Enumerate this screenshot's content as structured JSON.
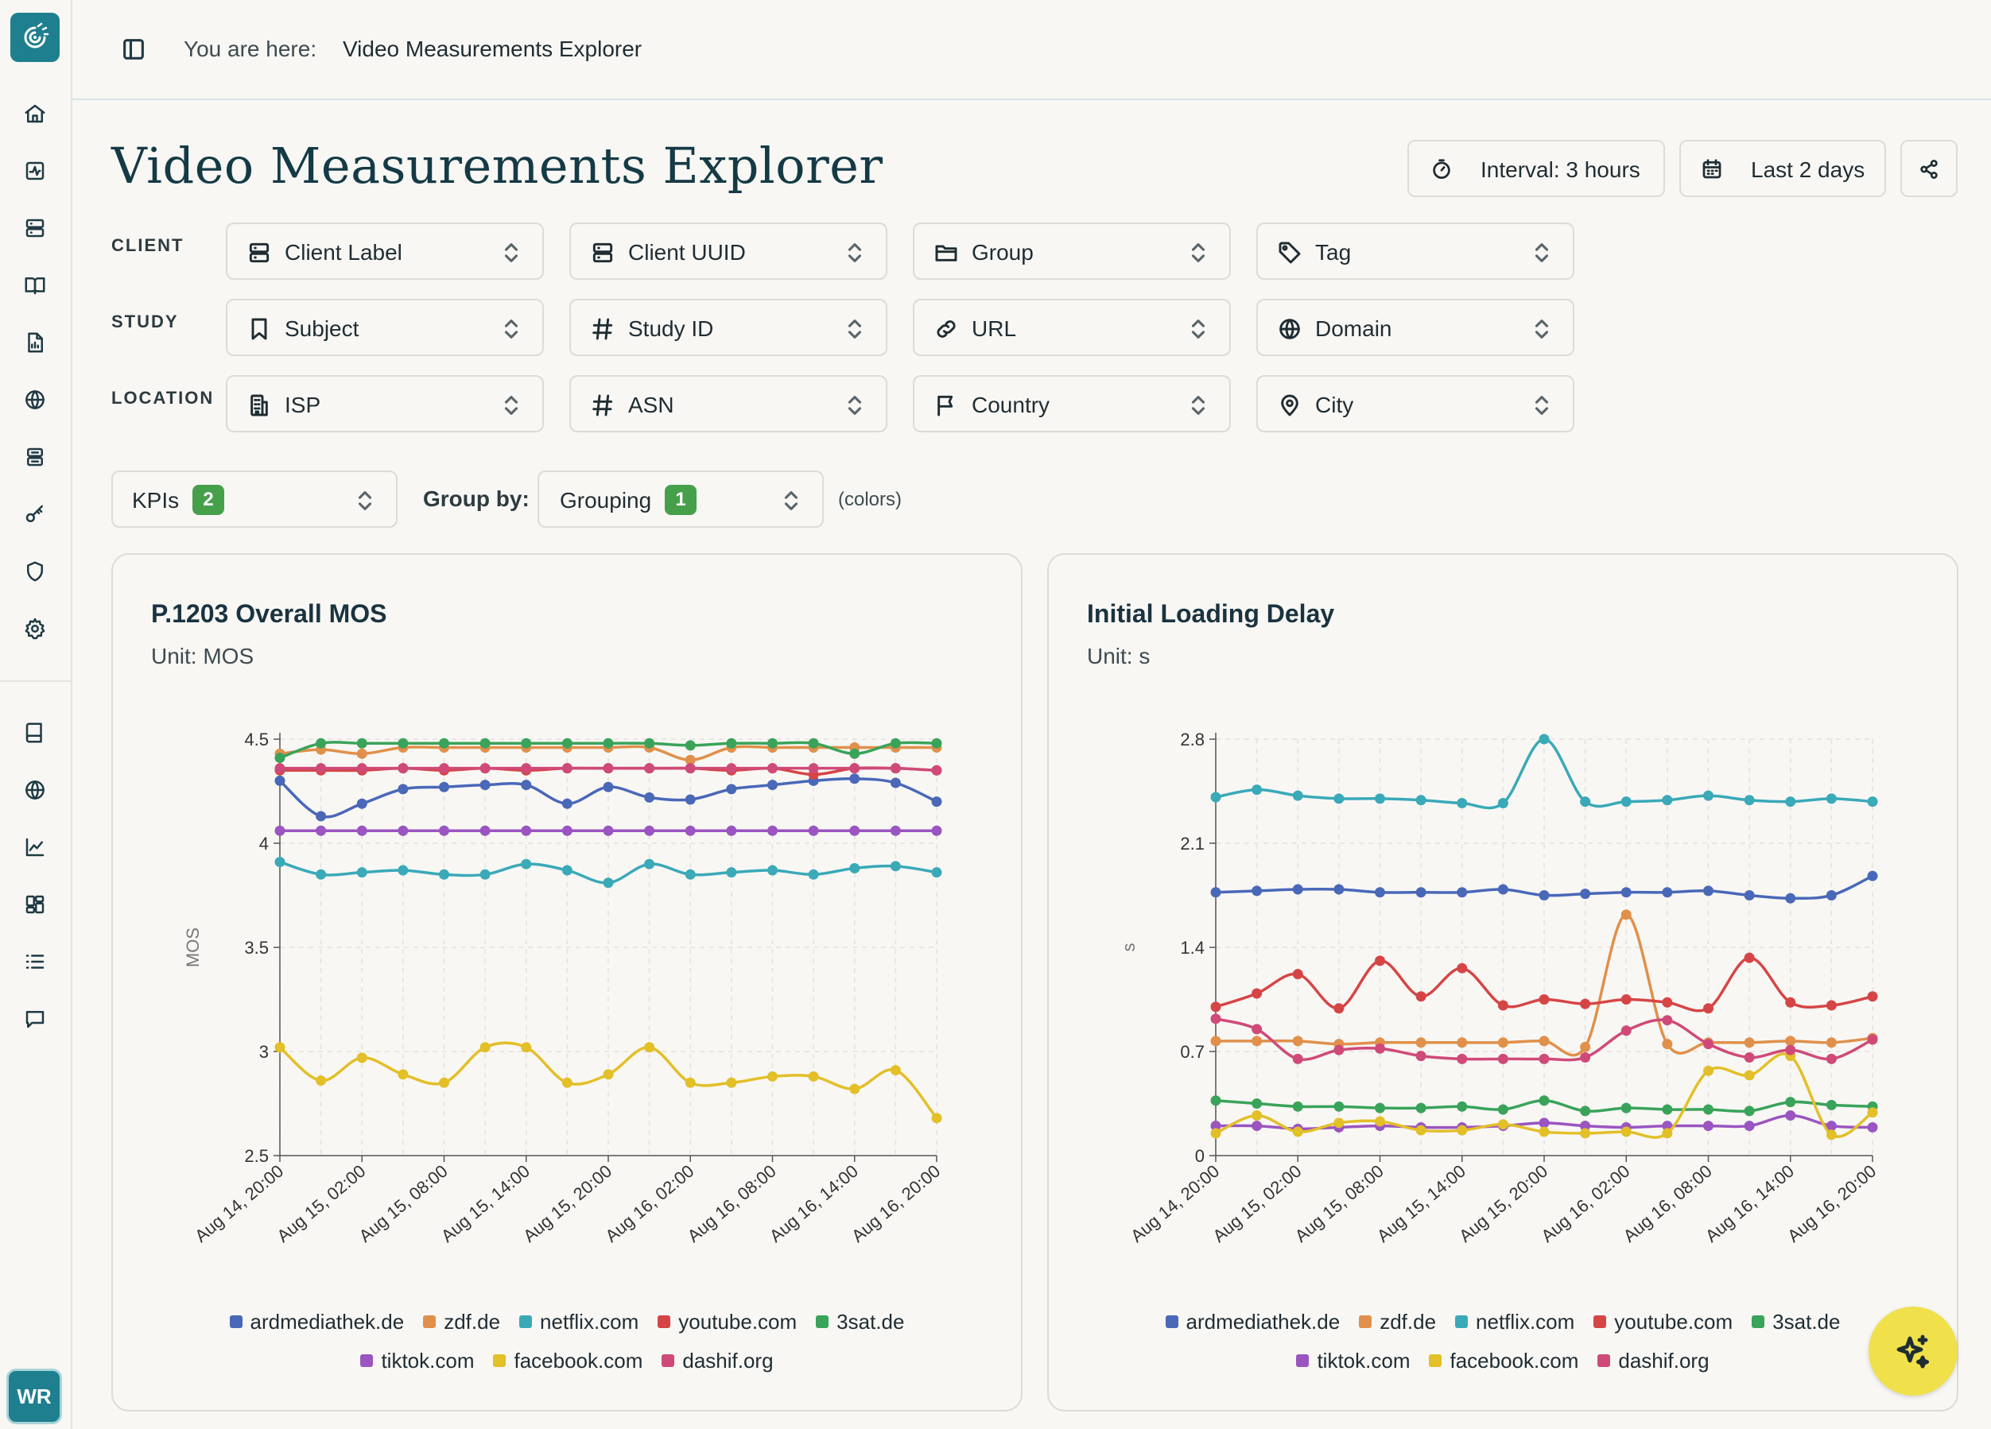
{
  "sidebar": {
    "avatar_initials": "WR",
    "icons": [
      "home-icon",
      "activity-icon",
      "server-icon",
      "book-open-icon",
      "report-icon",
      "globe-icon",
      "database-icon",
      "key-icon",
      "shield-icon",
      "gear-icon",
      "book-icon",
      "globe-icon",
      "chart-line-icon",
      "dashboard-icon",
      "list-icon",
      "message-icon"
    ]
  },
  "breadcrumb": {
    "prefix": "You are here:",
    "current": "Video Measurements Explorer"
  },
  "page_title": "Video Measurements Explorer",
  "actions": {
    "interval": "Interval: 3 hours",
    "range": "Last 2 days"
  },
  "filters": {
    "rows": [
      {
        "label": "CLIENT",
        "items": [
          {
            "label": "Client Label",
            "icon": "server-icon"
          },
          {
            "label": "Client UUID",
            "icon": "server-icon"
          },
          {
            "label": "Group",
            "icon": "folder-icon"
          },
          {
            "label": "Tag",
            "icon": "tag-icon"
          }
        ]
      },
      {
        "label": "STUDY",
        "items": [
          {
            "label": "Subject",
            "icon": "bookmark-icon"
          },
          {
            "label": "Study ID",
            "icon": "hash-icon"
          },
          {
            "label": "URL",
            "icon": "link-icon"
          },
          {
            "label": "Domain",
            "icon": "globe-icon"
          }
        ]
      },
      {
        "label": "LOCATION",
        "items": [
          {
            "label": "ISP",
            "icon": "building-icon"
          },
          {
            "label": "ASN",
            "icon": "hash-icon"
          },
          {
            "label": "Country",
            "icon": "flag-icon"
          },
          {
            "label": "City",
            "icon": "map-pin-icon"
          }
        ]
      }
    ]
  },
  "kpis": {
    "label": "KPIs",
    "count": "2"
  },
  "group_by": {
    "label": "Group by:",
    "value": "Grouping",
    "count": "1",
    "note": "(colors)"
  },
  "colors": {
    "ardmediathek.de": "#4a68b8",
    "zdf.de": "#e0904a",
    "netflix.com": "#3aa9b8",
    "youtube.com": "#d64545",
    "3sat.de": "#3aa35a",
    "tiktok.com": "#9a55c0",
    "facebook.com": "#e3bf28",
    "dashif.org": "#cf4a78"
  },
  "chart_data": [
    {
      "type": "line",
      "title": "P.1203 Overall MOS",
      "subtitle": "Unit: MOS",
      "ylabel": "MOS",
      "ylim": [
        2.5,
        4.5
      ],
      "yticks": [
        "2.5",
        "3",
        "3.5",
        "4",
        "4.5"
      ],
      "x": [
        "Aug 14, 20:00",
        "Aug 14, 23:00",
        "Aug 15, 02:00",
        "Aug 15, 05:00",
        "Aug 15, 08:00",
        "Aug 15, 11:00",
        "Aug 15, 14:00",
        "Aug 15, 17:00",
        "Aug 15, 20:00",
        "Aug 15, 23:00",
        "Aug 16, 02:00",
        "Aug 16, 05:00",
        "Aug 16, 08:00",
        "Aug 16, 11:00",
        "Aug 16, 14:00",
        "Aug 16, 17:00",
        "Aug 16, 20:00"
      ],
      "xticks": [
        "Aug 14, 20:00",
        "Aug 15, 02:00",
        "Aug 15, 08:00",
        "Aug 15, 14:00",
        "Aug 15, 20:00",
        "Aug 16, 02:00",
        "Aug 16, 08:00",
        "Aug 16, 14:00",
        "Aug 16, 20:00"
      ],
      "series": [
        {
          "name": "ardmediathek.de",
          "values": [
            4.3,
            4.13,
            4.19,
            4.26,
            4.27,
            4.28,
            4.28,
            4.19,
            4.27,
            4.22,
            4.21,
            4.26,
            4.28,
            4.3,
            4.31,
            4.29,
            4.2
          ]
        },
        {
          "name": "zdf.de",
          "values": [
            4.43,
            4.45,
            4.43,
            4.46,
            4.46,
            4.46,
            4.46,
            4.46,
            4.46,
            4.46,
            4.4,
            4.46,
            4.46,
            4.46,
            4.46,
            4.46,
            4.46
          ]
        },
        {
          "name": "netflix.com",
          "values": [
            3.91,
            3.85,
            3.86,
            3.87,
            3.85,
            3.85,
            3.9,
            3.87,
            3.81,
            3.9,
            3.85,
            3.86,
            3.87,
            3.85,
            3.88,
            3.89,
            3.86
          ]
        },
        {
          "name": "youtube.com",
          "values": [
            4.35,
            4.35,
            4.35,
            4.36,
            4.35,
            4.36,
            4.35,
            4.36,
            4.36,
            4.36,
            4.36,
            4.35,
            4.36,
            4.33,
            4.36,
            4.36,
            4.35
          ]
        },
        {
          "name": "3sat.de",
          "values": [
            4.41,
            4.48,
            4.48,
            4.48,
            4.48,
            4.48,
            4.48,
            4.48,
            4.48,
            4.48,
            4.47,
            4.48,
            4.48,
            4.48,
            4.43,
            4.48,
            4.48
          ]
        },
        {
          "name": "tiktok.com",
          "values": [
            4.06,
            4.06,
            4.06,
            4.06,
            4.06,
            4.06,
            4.06,
            4.06,
            4.06,
            4.06,
            4.06,
            4.06,
            4.06,
            4.06,
            4.06,
            4.06,
            4.06
          ]
        },
        {
          "name": "facebook.com",
          "values": [
            3.02,
            2.86,
            2.97,
            2.89,
            2.85,
            3.02,
            3.02,
            2.85,
            2.89,
            3.02,
            2.85,
            2.85,
            2.88,
            2.88,
            2.82,
            2.91,
            2.68
          ]
        },
        {
          "name": "dashif.org",
          "values": [
            4.36,
            4.36,
            4.36,
            4.36,
            4.36,
            4.36,
            4.36,
            4.36,
            4.36,
            4.36,
            4.36,
            4.36,
            4.36,
            4.36,
            4.36,
            4.36,
            4.35
          ]
        }
      ]
    },
    {
      "type": "line",
      "title": "Initial Loading Delay",
      "subtitle": "Unit: s",
      "ylabel": "s",
      "ylim": [
        0,
        2.8
      ],
      "yticks": [
        "0",
        "0.7",
        "1.4",
        "2.1",
        "2.8"
      ],
      "x": [
        "Aug 14, 20:00",
        "Aug 14, 23:00",
        "Aug 15, 02:00",
        "Aug 15, 05:00",
        "Aug 15, 08:00",
        "Aug 15, 11:00",
        "Aug 15, 14:00",
        "Aug 15, 17:00",
        "Aug 15, 20:00",
        "Aug 15, 23:00",
        "Aug 16, 02:00",
        "Aug 16, 05:00",
        "Aug 16, 08:00",
        "Aug 16, 11:00",
        "Aug 16, 14:00",
        "Aug 16, 17:00",
        "Aug 16, 20:00"
      ],
      "xticks": [
        "Aug 14, 20:00",
        "Aug 15, 02:00",
        "Aug 15, 08:00",
        "Aug 15, 14:00",
        "Aug 15, 20:00",
        "Aug 16, 02:00",
        "Aug 16, 08:00",
        "Aug 16, 14:00",
        "Aug 16, 20:00"
      ],
      "series": [
        {
          "name": "ardmediathek.de",
          "values": [
            1.77,
            1.78,
            1.79,
            1.79,
            1.77,
            1.77,
            1.77,
            1.79,
            1.75,
            1.76,
            1.77,
            1.77,
            1.78,
            1.75,
            1.73,
            1.75,
            1.88
          ]
        },
        {
          "name": "zdf.de",
          "values": [
            0.77,
            0.77,
            0.77,
            0.75,
            0.76,
            0.76,
            0.76,
            0.76,
            0.77,
            0.73,
            1.62,
            0.75,
            0.76,
            0.76,
            0.77,
            0.76,
            0.79
          ]
        },
        {
          "name": "netflix.com",
          "values": [
            2.41,
            2.46,
            2.42,
            2.4,
            2.4,
            2.39,
            2.37,
            2.37,
            2.8,
            2.38,
            2.38,
            2.39,
            2.42,
            2.39,
            2.38,
            2.4,
            2.38
          ]
        },
        {
          "name": "youtube.com",
          "values": [
            1.0,
            1.09,
            1.22,
            0.99,
            1.31,
            1.07,
            1.26,
            1.01,
            1.05,
            1.02,
            1.05,
            1.03,
            0.99,
            1.33,
            1.03,
            1.01,
            1.07
          ]
        },
        {
          "name": "3sat.de",
          "values": [
            0.37,
            0.35,
            0.33,
            0.33,
            0.32,
            0.32,
            0.33,
            0.31,
            0.37,
            0.3,
            0.32,
            0.31,
            0.31,
            0.3,
            0.36,
            0.34,
            0.33
          ]
        },
        {
          "name": "tiktok.com",
          "values": [
            0.2,
            0.2,
            0.18,
            0.19,
            0.2,
            0.19,
            0.19,
            0.2,
            0.22,
            0.2,
            0.19,
            0.2,
            0.2,
            0.2,
            0.27,
            0.2,
            0.19
          ]
        },
        {
          "name": "facebook.com",
          "values": [
            0.15,
            0.27,
            0.16,
            0.22,
            0.23,
            0.17,
            0.17,
            0.21,
            0.16,
            0.15,
            0.16,
            0.15,
            0.57,
            0.54,
            0.67,
            0.14,
            0.29
          ]
        },
        {
          "name": "dashif.org",
          "values": [
            0.92,
            0.85,
            0.65,
            0.71,
            0.72,
            0.67,
            0.65,
            0.65,
            0.65,
            0.66,
            0.84,
            0.91,
            0.75,
            0.66,
            0.71,
            0.65,
            0.78
          ]
        }
      ]
    }
  ]
}
